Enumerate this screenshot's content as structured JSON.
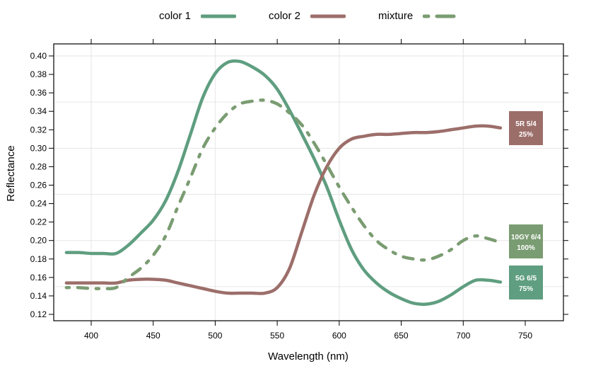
{
  "chart_data": {
    "type": "line",
    "title": "",
    "xlabel": "Wavelength (nm)",
    "ylabel": "Reflectance",
    "xlim": [
      370,
      780
    ],
    "ylim": [
      0.113,
      0.413
    ],
    "x_ticks": [
      400,
      450,
      500,
      550,
      600,
      650,
      700,
      750
    ],
    "y_ticks": [
      0.12,
      0.14,
      0.16,
      0.18,
      0.2,
      0.22,
      0.24,
      0.26,
      0.28,
      0.3,
      0.32,
      0.34,
      0.36,
      0.38,
      0.4
    ],
    "y_tick_labels": [
      "0.12",
      "0.14",
      "0.16",
      "0.18",
      "0.20",
      "0.22",
      "0.24",
      "0.26",
      "0.28",
      "0.30",
      "0.32",
      "0.34",
      "0.36",
      "0.38",
      "0.40"
    ],
    "x_grid": [
      400,
      500,
      600,
      700
    ],
    "y_grid": [
      0.15,
      0.2,
      0.25,
      0.3,
      0.35,
      0.4
    ],
    "grid": true,
    "legend_position": "top",
    "x": [
      380,
      390,
      400,
      410,
      420,
      430,
      440,
      450,
      460,
      470,
      480,
      490,
      500,
      510,
      520,
      530,
      540,
      550,
      560,
      570,
      580,
      590,
      600,
      610,
      620,
      630,
      640,
      650,
      660,
      670,
      680,
      690,
      700,
      710,
      720,
      730
    ],
    "series": [
      {
        "name": "color 1",
        "color": "#5f9e80",
        "style": "solid",
        "values": [
          0.187,
          0.187,
          0.186,
          0.186,
          0.186,
          0.195,
          0.208,
          0.222,
          0.243,
          0.275,
          0.315,
          0.355,
          0.381,
          0.393,
          0.394,
          0.388,
          0.379,
          0.364,
          0.341,
          0.315,
          0.288,
          0.258,
          0.222,
          0.19,
          0.168,
          0.154,
          0.144,
          0.137,
          0.132,
          0.131,
          0.134,
          0.141,
          0.15,
          0.157,
          0.157,
          0.155
        ],
        "label_box": {
          "line1": "5G 6/5",
          "line2": "75%",
          "color": "#5f9e80"
        }
      },
      {
        "name": "color 2",
        "color": "#9c6e6a",
        "style": "solid",
        "values": [
          0.154,
          0.154,
          0.154,
          0.154,
          0.154,
          0.157,
          0.158,
          0.158,
          0.157,
          0.154,
          0.151,
          0.148,
          0.145,
          0.143,
          0.143,
          0.143,
          0.143,
          0.149,
          0.17,
          0.21,
          0.25,
          0.28,
          0.3,
          0.31,
          0.313,
          0.315,
          0.315,
          0.316,
          0.317,
          0.317,
          0.318,
          0.32,
          0.322,
          0.324,
          0.324,
          0.322
        ],
        "label_box": {
          "line1": "5R 5/4",
          "line2": "25%",
          "color": "#9c6e6a"
        }
      },
      {
        "name": "mixture",
        "color": "#7a9c72",
        "style": "dashed",
        "values": [
          0.149,
          0.149,
          0.148,
          0.148,
          0.149,
          0.16,
          0.17,
          0.184,
          0.205,
          0.237,
          0.268,
          0.3,
          0.322,
          0.338,
          0.348,
          0.351,
          0.352,
          0.348,
          0.338,
          0.325,
          0.305,
          0.282,
          0.258,
          0.236,
          0.216,
          0.2,
          0.19,
          0.183,
          0.18,
          0.179,
          0.183,
          0.19,
          0.2,
          0.205,
          0.202,
          0.198
        ],
        "label_box": {
          "line1": "10GY 6/4",
          "line2": "100%",
          "color": "#7a9c72"
        }
      }
    ]
  },
  "legend": {
    "items": [
      {
        "label": "color 1",
        "color": "#5f9e80",
        "style": "solid"
      },
      {
        "label": "color 2",
        "color": "#9c6e6a",
        "style": "solid"
      },
      {
        "label": "mixture",
        "color": "#7a9c72",
        "style": "dashed"
      }
    ]
  }
}
